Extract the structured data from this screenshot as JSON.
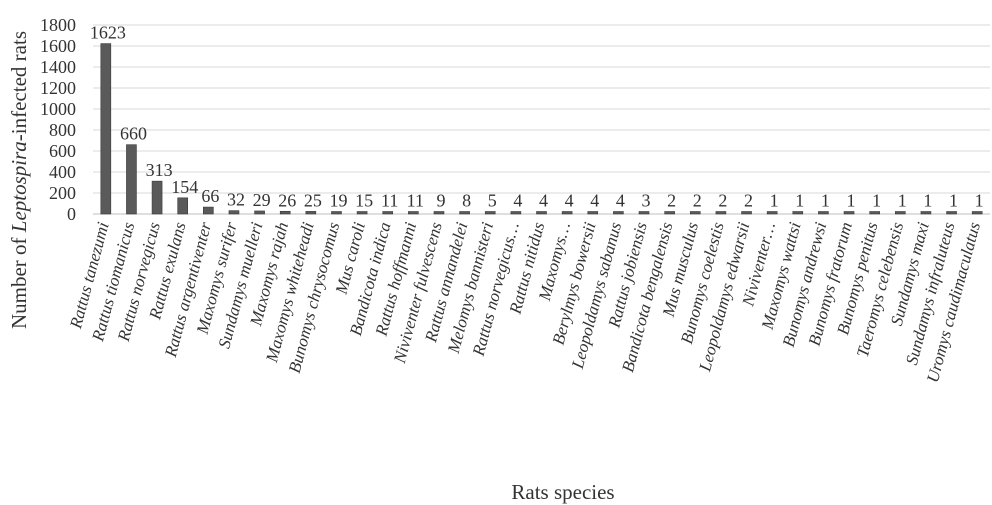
{
  "chart_data": {
    "type": "bar",
    "ylabel_parts": [
      "Number of ",
      "Leptospira",
      "-infected rats"
    ],
    "xlabel": "Rats species",
    "ylim": [
      0,
      1800
    ],
    "yticks": [
      0,
      200,
      400,
      600,
      800,
      1000,
      1200,
      1400,
      1600,
      1800
    ],
    "grid": true,
    "legend": "none",
    "bar_color": "#5a5a5a",
    "categories": [
      "Rattus tanezumi",
      "Rattus tiomanicus",
      "Rattus norvegicus",
      "Rattus exulans",
      "Rattus argentiventer",
      "Maxomys surifer",
      "Sundamys muelleri",
      "Maxomys rajah",
      "Maxomys whiteheadi",
      "Bunomys chrysocomus",
      "Mus caroli",
      "Bandicota indica",
      "Rattus hoffmanni",
      "Niviventer fulvescens",
      "Rattus annandelei",
      "Melomys bannisteri",
      "Rattus norvegicus…",
      "Rattus nitidus",
      "Maxomys…",
      "Berylmys bowersii",
      "Leopoldamys sabanus",
      "Rattus jobiensis",
      "Bandicota bengalensis",
      "Mus musculus",
      "Bunomys coelestis",
      "Leopoldamys edwarsii",
      "Niviventer…",
      "Maxomys wattsi",
      "Bunomys andrewsi",
      "Bunomys fratorum",
      "Bunomys penitus",
      "Taeromys celebensis",
      "Sundamys maxi",
      "Sundamys infraluteus",
      "Uromys caudimaculatus"
    ],
    "values": [
      1623,
      660,
      313,
      154,
      66,
      32,
      29,
      26,
      25,
      19,
      15,
      11,
      11,
      9,
      8,
      5,
      4,
      4,
      4,
      4,
      4,
      3,
      2,
      2,
      2,
      2,
      1,
      1,
      1,
      1,
      1,
      1,
      1,
      1,
      1
    ]
  }
}
